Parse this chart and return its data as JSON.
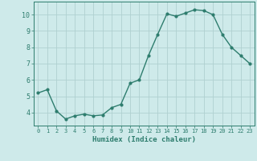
{
  "x": [
    0,
    1,
    2,
    3,
    4,
    5,
    6,
    7,
    8,
    9,
    10,
    11,
    12,
    13,
    14,
    15,
    16,
    17,
    18,
    19,
    20,
    21,
    22,
    23
  ],
  "y": [
    5.2,
    5.4,
    4.1,
    3.6,
    3.8,
    3.9,
    3.8,
    3.85,
    4.3,
    4.5,
    5.8,
    6.0,
    7.5,
    8.8,
    10.05,
    9.9,
    10.1,
    10.3,
    10.25,
    10.0,
    8.8,
    8.0,
    7.5,
    7.0
  ],
  "line_color": "#2e7d6e",
  "marker": "o",
  "marker_size": 2.0,
  "line_width": 1.0,
  "bg_color": "#ceeaea",
  "grid_color": "#b0d0d0",
  "tick_color": "#2e7d6e",
  "label_color": "#2e7d6e",
  "xlabel": "Humidex (Indice chaleur)",
  "ylim": [
    3.2,
    10.8
  ],
  "xlim": [
    -0.5,
    23.5
  ],
  "yticks": [
    4,
    5,
    6,
    7,
    8,
    9,
    10
  ],
  "xtick_labels": [
    "0",
    "1",
    "2",
    "3",
    "4",
    "5",
    "6",
    "7",
    "8",
    "9",
    "10",
    "11",
    "12",
    "13",
    "14",
    "15",
    "16",
    "17",
    "18",
    "19",
    "20",
    "21",
    "22",
    "23"
  ]
}
